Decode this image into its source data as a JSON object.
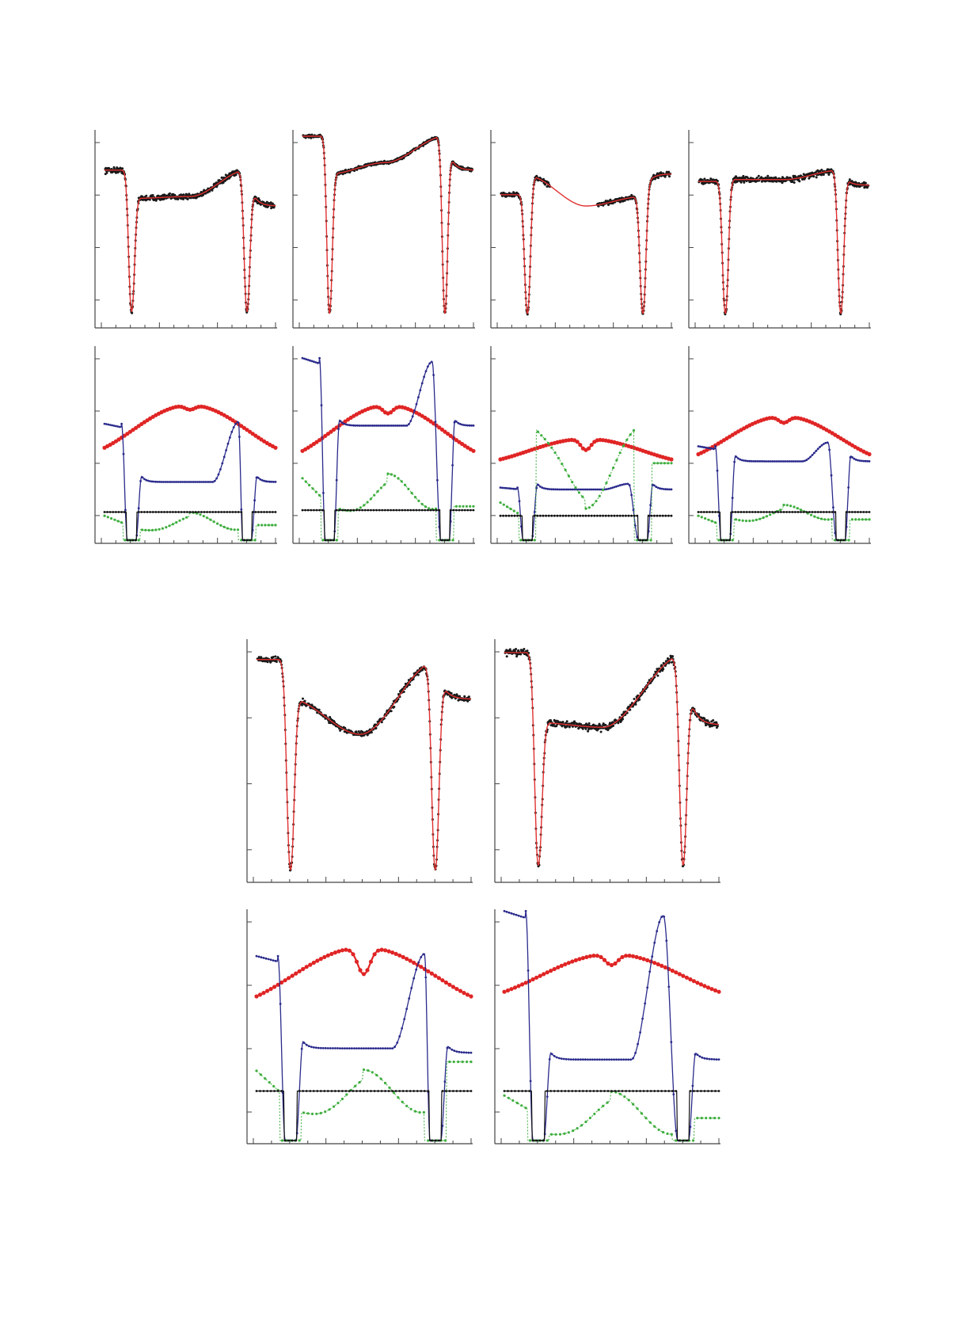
{
  "colors": {
    "observed": "#1a1a1a",
    "model": "#e03030",
    "red_component": "#e02525",
    "blue_component": "#2a2a8c",
    "green_component": "#3fae3f",
    "black_component": "#111111",
    "axis": "#444444"
  },
  "chart_data": [
    {
      "id": "lc-1",
      "type": "scatter",
      "title": "",
      "xlabel": "",
      "ylabel": "",
      "xlim": [
        0,
        1.2
      ],
      "ylim": [
        0,
        1
      ],
      "grid": false,
      "eclipses": [
        0.19,
        1.0
      ],
      "depth": 0.07,
      "width": 0.028,
      "levels": {
        "start": 0.82,
        "after1": 0.67,
        "mid": 0.68,
        "mid_pos": 0.6,
        "before2": 0.82,
        "after2": 0.63
      },
      "noise": 0.018,
      "series": [
        {
          "role": "observations",
          "marker": "dot"
        },
        {
          "role": "fit",
          "marker": "line"
        }
      ]
    },
    {
      "id": "lc-2",
      "type": "scatter",
      "title": "",
      "xlabel": "",
      "ylabel": "",
      "xlim": [
        0,
        1.2
      ],
      "ylim": [
        0,
        1
      ],
      "grid": false,
      "eclipses": [
        0.19,
        1.0
      ],
      "depth": 0.06,
      "width": 0.026,
      "levels": {
        "start": 1.0,
        "after1": 0.8,
        "mid": 0.86,
        "mid_pos": 0.58,
        "before2": 1.0,
        "after2": 0.82
      },
      "noise": 0.01,
      "series": [
        {
          "role": "observations",
          "marker": "dot"
        },
        {
          "role": "fit",
          "marker": "line"
        }
      ]
    },
    {
      "id": "lc-3",
      "type": "scatter",
      "title": "",
      "xlabel": "",
      "ylabel": "",
      "xlim": [
        0,
        1.2
      ],
      "ylim": [
        0,
        1
      ],
      "grid": false,
      "eclipses": [
        0.19,
        1.0
      ],
      "depth": 0.06,
      "width": 0.028,
      "levels": {
        "start": 0.69,
        "after1": 0.79,
        "mid": 0.63,
        "mid_pos": 0.6,
        "before2": 0.68,
        "after2": 0.8
      },
      "noise": 0.014,
      "gap": [
        0.35,
        0.68
      ],
      "series": [
        {
          "role": "observations",
          "marker": "dot"
        },
        {
          "role": "fit",
          "marker": "line"
        }
      ]
    },
    {
      "id": "lc-4",
      "type": "scatter",
      "title": "",
      "xlabel": "",
      "ylabel": "",
      "xlim": [
        0,
        1.2
      ],
      "ylim": [
        0,
        1
      ],
      "grid": false,
      "eclipses": [
        0.19,
        1.0
      ],
      "depth": 0.06,
      "width": 0.028,
      "levels": {
        "start": 0.76,
        "after1": 0.77,
        "mid": 0.77,
        "mid_pos": 0.6,
        "before2": 0.82,
        "after2": 0.74
      },
      "noise": 0.018,
      "series": [
        {
          "role": "observations",
          "marker": "dot"
        },
        {
          "role": "fit",
          "marker": "line"
        }
      ]
    },
    {
      "id": "lc-5",
      "type": "scatter",
      "title": "",
      "xlabel": "",
      "ylabel": "",
      "xlim": [
        0,
        1.2
      ],
      "ylim": [
        0,
        1
      ],
      "grid": false,
      "eclipses": [
        0.19,
        1.0
      ],
      "depth": 0.04,
      "width": 0.028,
      "levels": {
        "start": 0.94,
        "after1": 0.77,
        "mid": 0.62,
        "mid_pos": 0.58,
        "before2": 0.93,
        "after2": 0.77
      },
      "noise": 0.015,
      "series": [
        {
          "role": "observations",
          "marker": "dot"
        },
        {
          "role": "fit",
          "marker": "line"
        }
      ]
    },
    {
      "id": "lc-6",
      "type": "scatter",
      "title": "",
      "xlabel": "",
      "ylabel": "",
      "xlim": [
        0,
        1.2
      ],
      "ylim": [
        0,
        1
      ],
      "grid": false,
      "eclipses": [
        0.19,
        1.0
      ],
      "depth": 0.06,
      "width": 0.028,
      "levels": {
        "start": 0.97,
        "after1": 0.67,
        "mid": 0.65,
        "mid_pos": 0.55,
        "before2": 0.96,
        "after2": 0.66
      },
      "noise": 0.018,
      "series": [
        {
          "role": "observations",
          "marker": "dot"
        },
        {
          "role": "fit",
          "marker": "line"
        }
      ]
    },
    {
      "id": "comp-1",
      "type": "line",
      "title": "",
      "xlabel": "",
      "ylabel": "",
      "xlim": [
        0,
        1.2
      ],
      "ylim": [
        0,
        1
      ],
      "grid": false,
      "eclipses": [
        0.19,
        1.0
      ],
      "red": {
        "center": 0.6,
        "amp": 0.27,
        "base": 0.45,
        "notch": 0.025
      },
      "blue": {
        "start": 0.62,
        "dip": 0.0,
        "plateau": 0.31,
        "bump_pos": 0.94,
        "bump": 0.63,
        "end": 0.31
      },
      "green": {
        "start": 0.13,
        "floor": 0.0,
        "mid": 0.04,
        "mid2": 0.16,
        "end": 0.08
      },
      "black": {
        "level": 0.15
      }
    },
    {
      "id": "comp-2",
      "type": "line",
      "title": "",
      "xlabel": "",
      "ylabel": "",
      "xlim": [
        0,
        1.2
      ],
      "ylim": [
        0,
        1
      ],
      "grid": false,
      "eclipses": [
        0.19,
        1.0
      ],
      "red": {
        "center": 0.6,
        "amp": 0.29,
        "base": 0.43,
        "notch": 0.045
      },
      "blue": {
        "start": 0.97,
        "dip": 0.0,
        "plateau": 0.61,
        "bump_pos": 0.91,
        "bump": 0.95,
        "end": 0.61
      },
      "green": {
        "start": 0.33,
        "floor": 0.0,
        "mid": 0.12,
        "mid2": 0.38,
        "end": 0.18
      },
      "black": {
        "level": 0.16
      }
    },
    {
      "id": "comp-3",
      "type": "line",
      "title": "",
      "xlabel": "",
      "ylabel": "",
      "xlim": [
        0,
        1.2
      ],
      "ylim": [
        0,
        1
      ],
      "grid": false,
      "eclipses": [
        0.19,
        1.0
      ],
      "red": {
        "center": 0.6,
        "amp": 0.13,
        "base": 0.41,
        "notch": 0.06
      },
      "blue": {
        "start": 0.28,
        "dip": 0.0,
        "plateau": 0.27,
        "bump_pos": 0.9,
        "bump": 0.3,
        "end": 0.27
      },
      "green": {
        "start": 0.2,
        "floor": 0.0,
        "mid": 0.42,
        "mid2": 0.14,
        "end": 0.41
      },
      "black": {
        "level": 0.13
      }
    },
    {
      "id": "comp-4",
      "type": "line",
      "title": "",
      "xlabel": "",
      "ylabel": "",
      "xlim": [
        0,
        1.2
      ],
      "ylim": [
        0,
        1
      ],
      "grid": false,
      "eclipses": [
        0.19,
        1.0
      ],
      "red": {
        "center": 0.6,
        "amp": 0.24,
        "base": 0.42,
        "notch": 0.035
      },
      "blue": {
        "start": 0.5,
        "dip": 0.0,
        "plateau": 0.42,
        "bump_pos": 0.91,
        "bump": 0.52,
        "end": 0.42
      },
      "green": {
        "start": 0.13,
        "floor": 0.0,
        "mid": 0.08,
        "mid2": 0.2,
        "end": 0.11
      },
      "black": {
        "level": 0.15
      }
    },
    {
      "id": "comp-5",
      "type": "line",
      "title": "",
      "xlabel": "",
      "ylabel": "",
      "xlim": [
        0,
        1.2
      ],
      "ylim": [
        0,
        1
      ],
      "grid": false,
      "eclipses": [
        0.19,
        1.0
      ],
      "red": {
        "center": 0.6,
        "amp": 0.26,
        "base": 0.6,
        "notch": 0.12
      },
      "blue": {
        "start": 0.82,
        "dip": 0.0,
        "plateau": 0.41,
        "bump_pos": 0.94,
        "bump": 0.83,
        "end": 0.39
      },
      "green": {
        "start": 0.31,
        "floor": 0.0,
        "mid": 0.09,
        "mid2": 0.34,
        "end": 0.35
      },
      "black": {
        "level": 0.22
      }
    },
    {
      "id": "comp-6",
      "type": "line",
      "title": "",
      "xlabel": "",
      "ylabel": "",
      "xlim": [
        0,
        1.2
      ],
      "ylim": [
        0,
        1
      ],
      "grid": false,
      "eclipses": [
        0.19,
        1.0
      ],
      "red": {
        "center": 0.6,
        "amp": 0.2,
        "base": 0.63,
        "notch": 0.05
      },
      "blue": {
        "start": 1.02,
        "dip": 0.0,
        "plateau": 0.36,
        "bump_pos": 0.89,
        "bump": 1.0,
        "end": 0.36
      },
      "green": {
        "start": 0.2,
        "floor": 0.0,
        "mid": 0.02,
        "mid2": 0.24,
        "end": 0.1
      },
      "black": {
        "level": 0.22
      }
    }
  ]
}
